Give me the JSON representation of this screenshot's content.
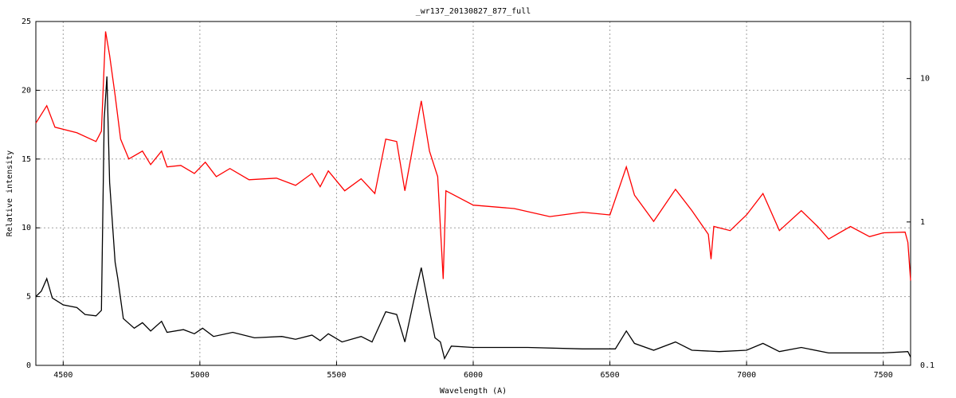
{
  "chart_data": {
    "type": "line",
    "title": "_wr137_20130827_877_full",
    "x_label": "Wavelength (A)",
    "y_label": "Relative intensity",
    "grid": true,
    "xlim": [
      4400,
      7600
    ],
    "xticks": [
      4500,
      5000,
      5500,
      6000,
      6500,
      7000,
      7500
    ],
    "ylim": [
      0,
      25
    ],
    "yticks": [
      0,
      5,
      10,
      15,
      20,
      25
    ],
    "y2lim": [
      0.1,
      25
    ],
    "y2ticks": [
      0.1,
      1,
      10
    ],
    "y2scale": "log",
    "series": [
      {
        "name": "black spectrum",
        "color": "#000000",
        "axis": "y",
        "x": [
          4400,
          4420,
          4440,
          4460,
          4500,
          4550,
          4580,
          4620,
          4640,
          4650,
          4660,
          4670,
          4690,
          4700,
          4720,
          4760,
          4790,
          4820,
          4860,
          4880,
          4940,
          4980,
          5010,
          5050,
          5120,
          5200,
          5300,
          5350,
          5410,
          5440,
          5470,
          5520,
          5590,
          5630,
          5680,
          5720,
          5750,
          5790,
          5810,
          5840,
          5860,
          5880,
          5895,
          5920,
          6000,
          6200,
          6400,
          6520,
          6560,
          6590,
          6660,
          6740,
          6800,
          6900,
          7000,
          7060,
          7120,
          7200,
          7300,
          7400,
          7500,
          7590,
          7600
        ],
        "values": [
          5.0,
          5.4,
          6.3,
          4.9,
          4.4,
          4.2,
          3.7,
          3.6,
          4.0,
          17.9,
          21.0,
          13.3,
          7.5,
          6.3,
          3.4,
          2.7,
          3.1,
          2.5,
          3.2,
          2.4,
          2.6,
          2.3,
          2.7,
          2.1,
          2.4,
          2.0,
          2.1,
          1.9,
          2.2,
          1.8,
          2.3,
          1.7,
          2.1,
          1.7,
          3.9,
          3.7,
          1.7,
          5.4,
          7.1,
          4.0,
          2.0,
          1.7,
          0.5,
          1.4,
          1.3,
          1.3,
          1.2,
          1.2,
          2.5,
          1.6,
          1.1,
          1.7,
          1.1,
          1.0,
          1.1,
          1.6,
          1.0,
          1.3,
          0.9,
          0.9,
          0.9,
          1.0,
          0.6
        ]
      },
      {
        "name": "red spectrum",
        "color": "#ff0000",
        "axis": "y2",
        "x": [
          4400,
          4440,
          4470,
          4550,
          4620,
          4640,
          4655,
          4670,
          4690,
          4710,
          4740,
          4790,
          4820,
          4860,
          4880,
          4930,
          4980,
          5020,
          5060,
          5110,
          5180,
          5280,
          5350,
          5410,
          5440,
          5470,
          5530,
          5590,
          5640,
          5680,
          5720,
          5750,
          5810,
          5840,
          5870,
          5890,
          5900,
          6000,
          6150,
          6280,
          6400,
          6500,
          6560,
          6590,
          6660,
          6740,
          6800,
          6860,
          6870,
          6880,
          6940,
          7000,
          7060,
          7120,
          7200,
          7260,
          7300,
          7380,
          7450,
          7500,
          7580,
          7590,
          7600
        ],
        "values": [
          4.89,
          6.47,
          4.58,
          4.19,
          3.64,
          4.3,
          21.3,
          14.5,
          7.64,
          3.78,
          2.75,
          3.12,
          2.51,
          3.12,
          2.42,
          2.48,
          2.18,
          2.61,
          2.07,
          2.36,
          1.97,
          2.02,
          1.8,
          2.18,
          1.76,
          2.27,
          1.65,
          2.0,
          1.58,
          3.78,
          3.64,
          1.65,
          6.99,
          3.12,
          2.07,
          0.4,
          1.65,
          1.31,
          1.24,
          1.09,
          1.17,
          1.12,
          2.42,
          1.54,
          1.01,
          1.69,
          1.2,
          0.82,
          0.55,
          0.93,
          0.87,
          1.12,
          1.58,
          0.87,
          1.2,
          0.93,
          0.76,
          0.93,
          0.79,
          0.84,
          0.85,
          0.72,
          0.39
        ]
      }
    ]
  }
}
